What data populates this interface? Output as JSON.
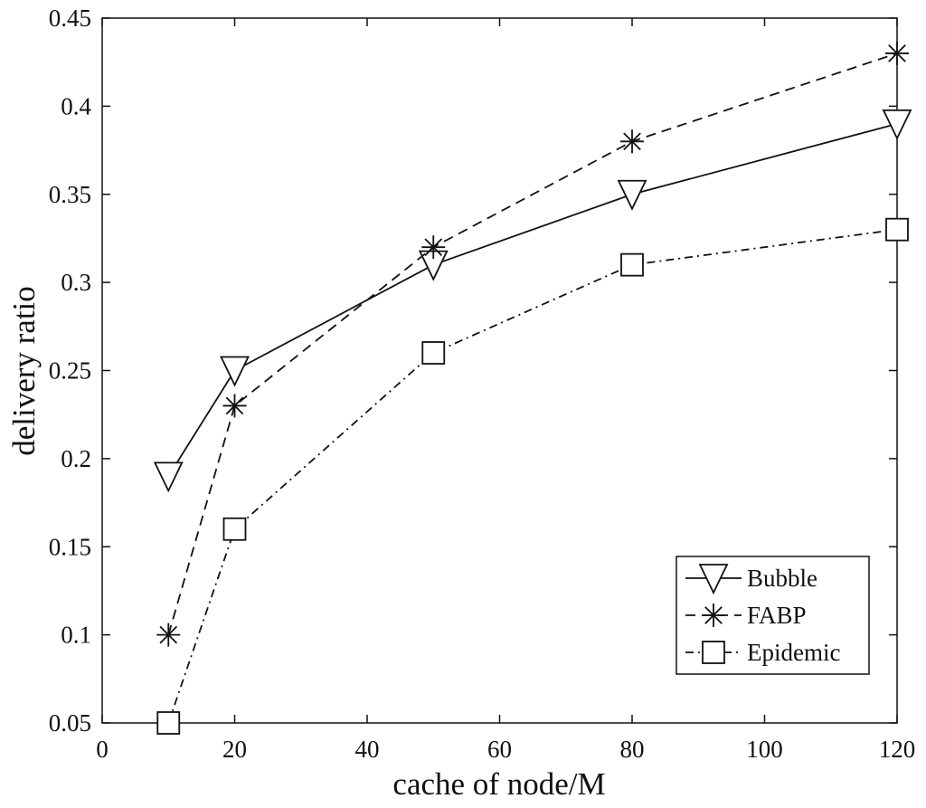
{
  "chart_data": {
    "type": "line",
    "xlabel": "cache of node/M",
    "ylabel": "delivery ratio",
    "xlim": [
      0,
      120
    ],
    "ylim": [
      0.05,
      0.45
    ],
    "xticks": [
      0,
      20,
      40,
      60,
      80,
      100,
      120
    ],
    "yticks": [
      0.05,
      0.1,
      0.15,
      0.2,
      0.25,
      0.3,
      0.35,
      0.4,
      0.45
    ],
    "xtick_labels": [
      "0",
      "20",
      "40",
      "60",
      "80",
      "100",
      "120"
    ],
    "ytick_labels": [
      "0.05",
      "0.1",
      "0.15",
      "0.2",
      "0.25",
      "0.3",
      "0.35",
      "0.4",
      "0.45"
    ],
    "grid": false,
    "legend_position": "bottom-right",
    "x": [
      10,
      20,
      50,
      80,
      120
    ],
    "series": [
      {
        "name": "Bubble",
        "values": [
          0.19,
          0.25,
          0.31,
          0.35,
          0.39
        ],
        "marker": "triangle-down",
        "dash": "solid",
        "color": "#111111"
      },
      {
        "name": "FABP",
        "values": [
          0.1,
          0.23,
          0.32,
          0.38,
          0.43
        ],
        "marker": "asterisk",
        "dash": "dashed",
        "color": "#111111"
      },
      {
        "name": "Epidemic",
        "values": [
          0.05,
          0.16,
          0.26,
          0.31,
          0.33
        ],
        "marker": "square",
        "dash": "dashdot",
        "color": "#111111"
      }
    ]
  }
}
